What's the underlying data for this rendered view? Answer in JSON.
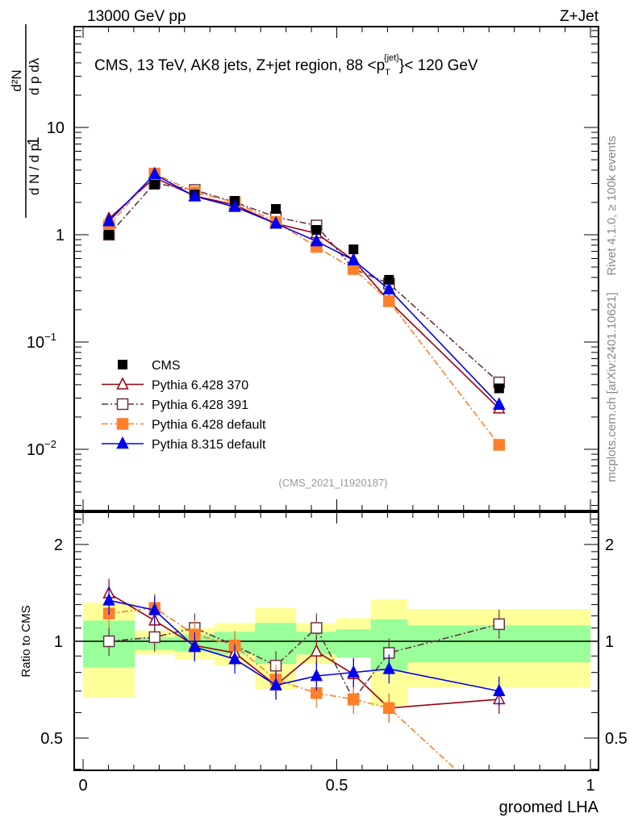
{
  "header": {
    "left": "13000 GeV pp",
    "right": "Z+Jet"
  },
  "side_texts": {
    "rivet": "Rivet 4.1.0, ≥ 100k events",
    "mcplots": "mcplots.cern.ch [arXiv:2401.10621]"
  },
  "chart_data": {
    "type": "line",
    "title": "CMS, 13 TeV, AK8 jets, Z+jet region, 88 <p_T^{jet}< 120 GeV",
    "title_parts": {
      "main": "CMS, 13 TeV, AK8 jets, Z+jet region, 88 <p",
      "sub": "T",
      "sup": "{jet}",
      "tail": "}< 120 GeV"
    },
    "analysis_id": "(CMS_2021_I1920187)",
    "ylabel": "1/(dN/dp_T) d²N/dp_T dλ",
    "ylabel_parts": {
      "num1": "1",
      "den1": "d N / d p",
      "num2": "d²N",
      "den2": "d p  dλ",
      "T": "T"
    },
    "xlabel": "groomed LHA",
    "ratio_ylabel": "Ratio to CMS",
    "xlim": [
      -0.02,
      1.02
    ],
    "ylim": [
      0.0027,
      87
    ],
    "yscale": "log",
    "ratio_ylim": [
      0.4,
      2.5
    ],
    "x_ticks": [
      "0",
      "0.5",
      "1"
    ],
    "x_tick_values": [
      0,
      0.5,
      1
    ],
    "y_ticks": [
      {
        "v": 10,
        "base": "10",
        "exp": ""
      },
      {
        "v": 1,
        "base": "1",
        "exp": ""
      },
      {
        "v": 0.1,
        "base": "10",
        "exp": "−1"
      },
      {
        "v": 0.01,
        "base": "10",
        "exp": "−2"
      }
    ],
    "ratio_ticks": [
      {
        "v": 2,
        "label": "2"
      },
      {
        "v": 1,
        "label": "1"
      },
      {
        "v": 0.5,
        "label": "0.5"
      }
    ],
    "x": [
      0.051,
      0.141,
      0.22,
      0.299,
      0.38,
      0.46,
      0.533,
      0.603,
      0.82
    ],
    "bin_edges": [
      0,
      0.102,
      0.181,
      0.259,
      0.339,
      0.42,
      0.499,
      0.567,
      0.639,
      1.0
    ],
    "data": {
      "name": "CMS",
      "values": [
        1.0,
        2.93,
        2.37,
        2.07,
        1.74,
        1.11,
        0.73,
        0.38,
        0.037
      ]
    },
    "band_inner": {
      "color": "#99ff99",
      "low": [
        0.83,
        0.94,
        0.93,
        0.91,
        0.85,
        0.91,
        0.89,
        0.81,
        0.86
      ],
      "high": [
        1.16,
        1.03,
        1.05,
        1.07,
        1.14,
        1.07,
        1.09,
        1.17,
        1.12
      ]
    },
    "band_outer": {
      "color": "#ffff99",
      "low": [
        0.67,
        0.91,
        0.88,
        0.84,
        0.71,
        0.85,
        0.89,
        0.63,
        0.72
      ],
      "high": [
        1.32,
        1.08,
        1.1,
        1.14,
        1.27,
        1.14,
        1.18,
        1.35,
        1.26
      ]
    },
    "series": [
      {
        "name": "Pythia 6.428 370",
        "color": "#990011",
        "marker": "open-triangle",
        "dash": "",
        "values": [
          1.41,
          3.4,
          2.3,
          1.9,
          1.27,
          1.03,
          0.58,
          0.24,
          0.024
        ],
        "ratio": [
          1.41,
          1.16,
          0.97,
          0.92,
          0.73,
          0.93,
          0.79,
          0.62,
          0.66
        ]
      },
      {
        "name": "Pythia 6.428 391",
        "color": "#663344",
        "marker": "open-square",
        "dash": "8,3,2,3",
        "values": [
          1.0,
          3.02,
          2.61,
          2.01,
          1.46,
          1.22,
          0.48,
          0.35,
          0.042
        ],
        "ratio": [
          1.0,
          1.03,
          1.1,
          0.97,
          0.84,
          1.1,
          0.66,
          0.92,
          1.13
        ]
      },
      {
        "name": "Pythia 6.428 default",
        "color": "#ff7f2a",
        "marker": "filled-square",
        "dash": "8,3,2,3",
        "values": [
          1.22,
          3.72,
          2.49,
          2.01,
          1.32,
          0.77,
          0.48,
          0.24,
          0.011
        ],
        "ratio": [
          1.22,
          1.27,
          1.05,
          0.97,
          0.76,
          0.69,
          0.66,
          0.62,
          0.3
        ]
      },
      {
        "name": "Pythia 8.315 default",
        "color": "#0000ee",
        "marker": "filled-triangle",
        "dash": "",
        "values": [
          1.34,
          3.66,
          2.28,
          1.82,
          1.27,
          0.87,
          0.58,
          0.31,
          0.026
        ],
        "ratio": [
          1.34,
          1.25,
          0.96,
          0.88,
          0.73,
          0.78,
          0.8,
          0.82,
          0.7
        ]
      }
    ],
    "legend_position": "bottom-left",
    "grid": false
  }
}
